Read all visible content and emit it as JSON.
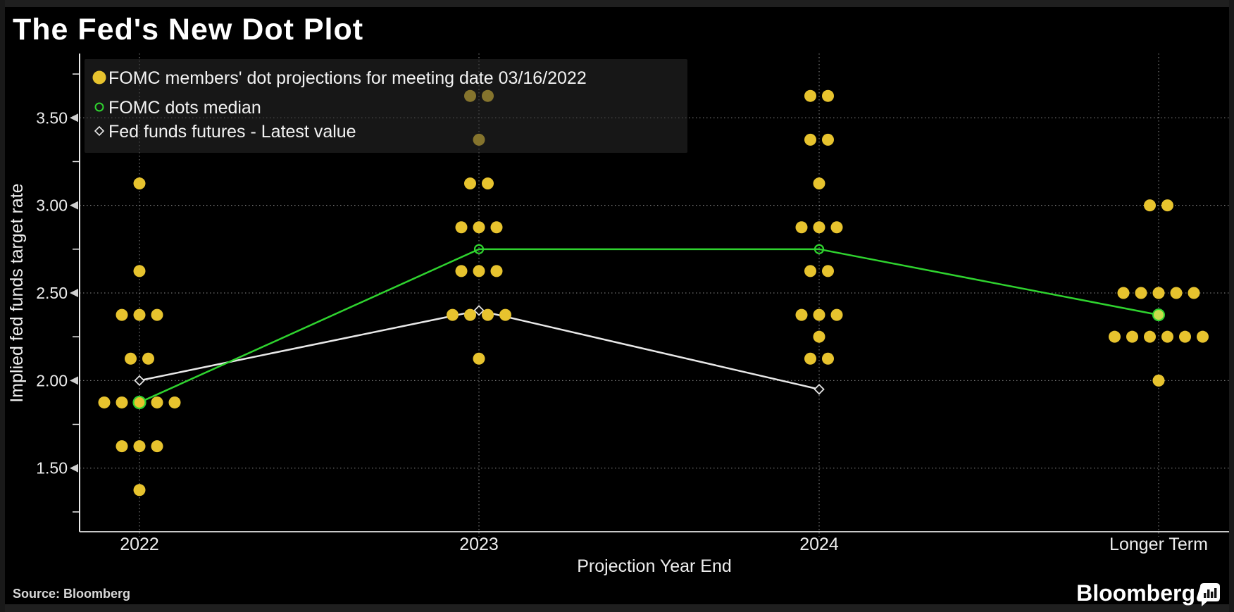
{
  "title": "The Fed's New Dot Plot",
  "source_label": "Source: Bloomberg",
  "brand": {
    "logo_text": "Bloomberg",
    "logo_icon": "bar-chart-badge-icon"
  },
  "legend": {
    "items": [
      {
        "marker": "filled-yellow-dot",
        "label": "FOMC members' dot projections for meeting date 03/16/2022"
      },
      {
        "marker": "open-green-circle",
        "label": "FOMC dots median"
      },
      {
        "marker": "open-white-diamond",
        "label": "Fed funds futures - Latest value"
      }
    ]
  },
  "chart_data": {
    "type": "scatter",
    "title": "The Fed's New Dot Plot",
    "xlabel": "Projection Year End",
    "ylabel": "Implied fed funds target rate",
    "categories": [
      "2022",
      "2023",
      "2024",
      "Longer Term"
    ],
    "ylim": [
      1.14,
      3.87
    ],
    "ytick_labels": [
      "1.50",
      "2.00",
      "2.50",
      "3.00",
      "3.50"
    ],
    "yticks_major": [
      1.5,
      2.0,
      2.5,
      3.0,
      3.5
    ],
    "yticks_minor": [
      1.25,
      1.75,
      2.25,
      2.75,
      3.25,
      3.75
    ],
    "grid": "dotted horizontal lines at major y ticks and dotted vertical lines at each category",
    "legend_position": "top-left inside plot, semi-transparent dark panel",
    "colors": {
      "background": "#000000",
      "dots": "#E7C32E",
      "median_line": "#2FD32F",
      "median_longer_term_fill": "#C8DC4B",
      "futures_line": "#E8E8E8",
      "axis_text": "#EDEDED"
    },
    "series": [
      {
        "name": "FOMC members' dot projections for meeting date 03/16/2022",
        "type": "dot-cluster",
        "by_category": [
          {
            "category": "2022",
            "rows": [
              [
                3.125,
                1
              ],
              [
                2.625,
                1
              ],
              [
                2.375,
                3
              ],
              [
                2.125,
                2
              ],
              [
                1.875,
                5
              ],
              [
                1.625,
                3
              ],
              [
                1.375,
                1
              ]
            ]
          },
          {
            "category": "2023",
            "rows": [
              [
                3.625,
                2
              ],
              [
                3.375,
                1
              ],
              [
                3.125,
                2
              ],
              [
                2.875,
                3
              ],
              [
                2.625,
                3
              ],
              [
                2.375,
                4
              ],
              [
                2.125,
                1
              ]
            ]
          },
          {
            "category": "2024",
            "rows": [
              [
                3.625,
                2
              ],
              [
                3.375,
                2
              ],
              [
                3.125,
                1
              ],
              [
                2.875,
                3
              ],
              [
                2.625,
                2
              ],
              [
                2.375,
                3
              ],
              [
                2.25,
                1
              ],
              [
                2.125,
                2
              ]
            ]
          },
          {
            "category": "Longer Term",
            "rows": [
              [
                3.0,
                2
              ],
              [
                2.5,
                5
              ],
              [
                2.25,
                6
              ],
              [
                2.0,
                1
              ]
            ]
          }
        ]
      },
      {
        "name": "FOMC dots median",
        "type": "line",
        "values": [
          1.875,
          2.75,
          2.75,
          2.375
        ]
      },
      {
        "name": "Fed funds futures - Latest value",
        "type": "line",
        "values": [
          2.0,
          2.4,
          1.95,
          null
        ]
      }
    ]
  }
}
